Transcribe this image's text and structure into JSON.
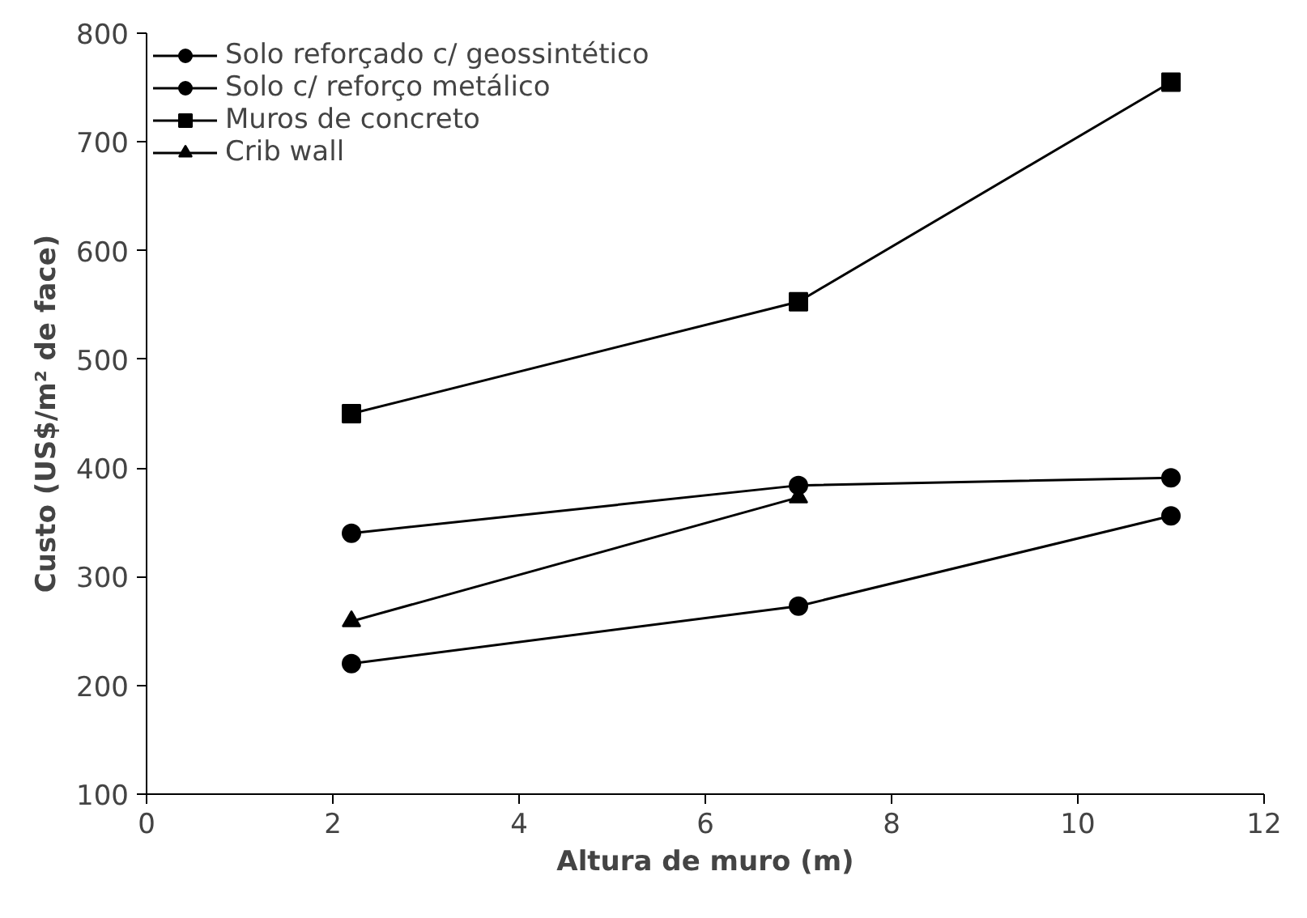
{
  "chart_data": {
    "type": "line",
    "xlabel": "Altura de muro (m)",
    "ylabel": "Custo (US$/m² de face)",
    "xlim": [
      0,
      12
    ],
    "xticks": [
      0,
      2,
      4,
      6,
      8,
      10,
      12
    ],
    "ylim": [
      100,
      800
    ],
    "yticks": [
      100,
      200,
      300,
      400,
      500,
      600,
      700,
      800
    ],
    "grid": false,
    "legend": "top left",
    "line_style": "solid",
    "series": [
      {
        "name": "Solo reforçado c/ geossintético",
        "color": "#000000",
        "marker": "circle",
        "x": [
          2.2,
          7,
          11
        ],
        "values": [
          220,
          273,
          356
        ]
      },
      {
        "name": "Solo c/ reforço metálico",
        "color": "#000000",
        "marker": "circle",
        "x": [
          2.2,
          7,
          11
        ],
        "values": [
          340,
          384,
          391
        ]
      },
      {
        "name": "Muros de concreto",
        "color": "#000000",
        "marker": "square",
        "x": [
          2.2,
          7,
          11
        ],
        "values": [
          450,
          553,
          755
        ]
      },
      {
        "name": "Crib wall",
        "color": "#000000",
        "marker": "triangle",
        "x": [
          2.2,
          7
        ],
        "values": [
          259,
          373
        ]
      }
    ]
  }
}
